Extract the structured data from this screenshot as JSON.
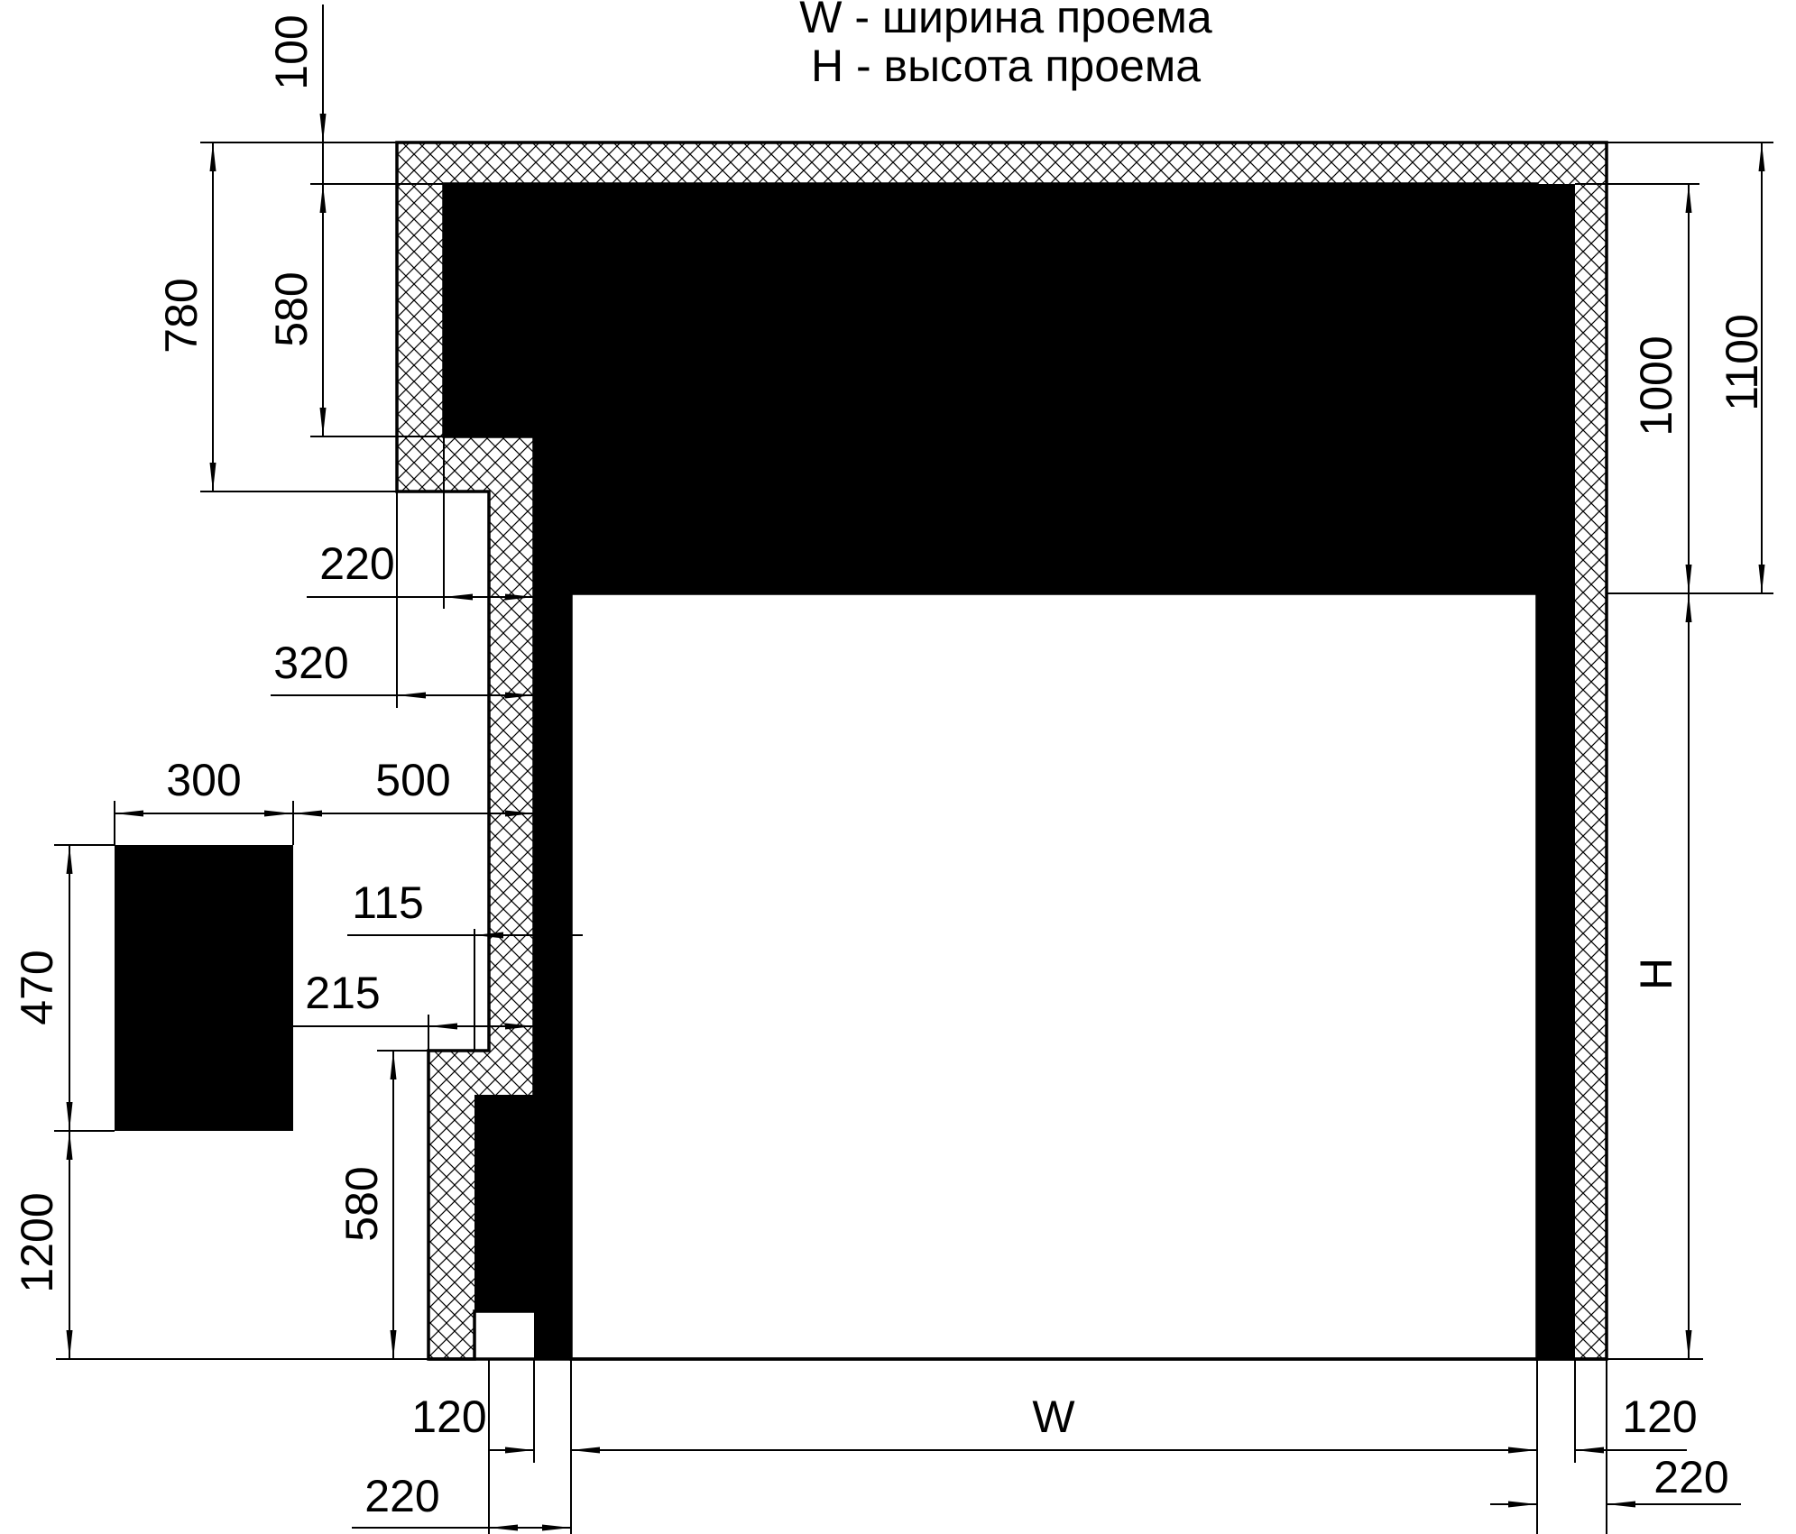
{
  "legend": {
    "width_line": "W - ширина проема",
    "height_line": "H - высота проема"
  },
  "dimensions": {
    "top_gap": "100",
    "left_outer_height": "780",
    "left_inner_height": "580",
    "right_box_height": "1000",
    "right_outer_height": "1100",
    "step_220": "220",
    "step_320": "320",
    "remote_width": "300",
    "remote_offset": "500",
    "remote_height": "470",
    "step_115": "115",
    "step_215": "215",
    "remote_elevation": "1200",
    "lower_box_height": "580",
    "opening_height": "H",
    "opening_width": "W",
    "bottom_left_120": "120",
    "bottom_left_220": "220",
    "bottom_right_120": "120",
    "bottom_right_220": "220"
  },
  "colors": {
    "ink": "#000000",
    "paper": "#ffffff"
  }
}
